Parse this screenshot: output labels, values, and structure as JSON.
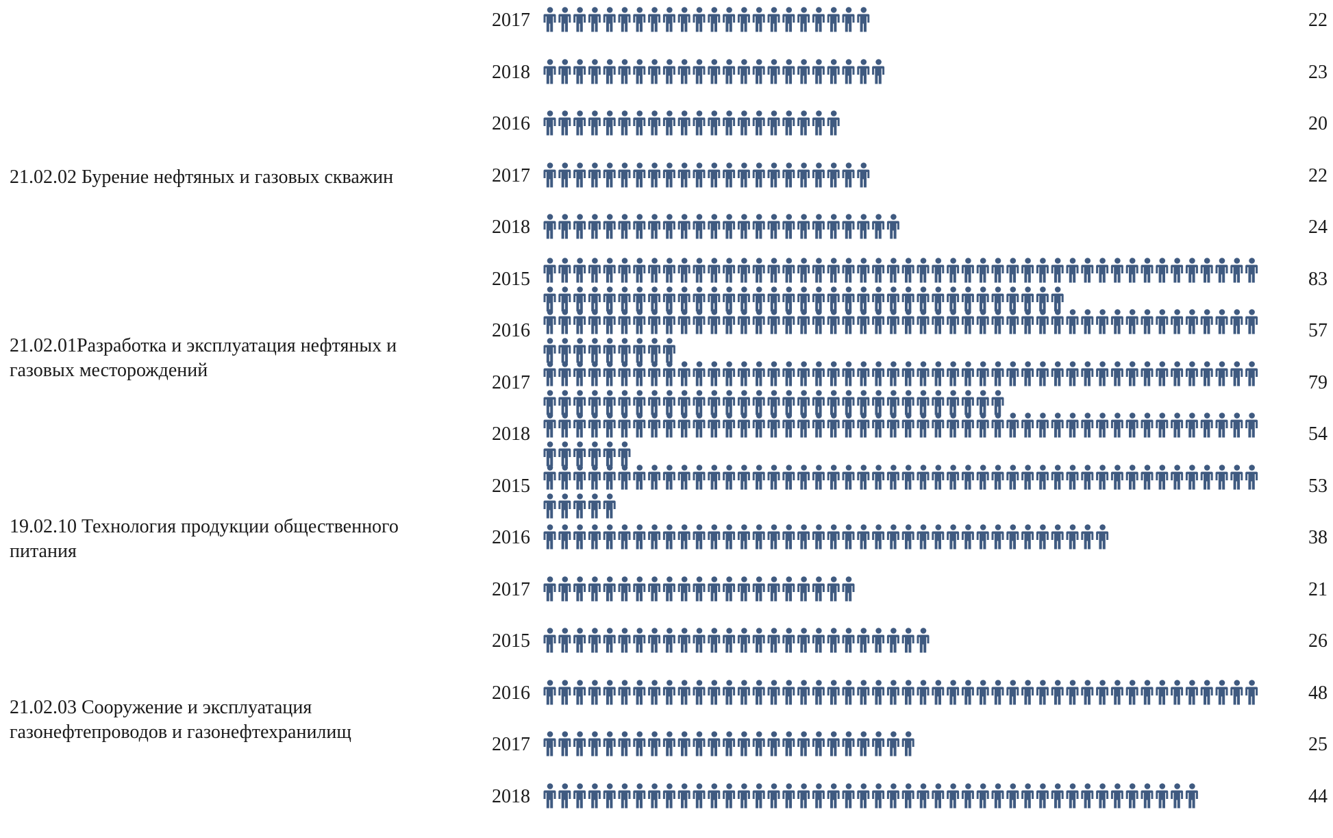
{
  "colors": {
    "icon": "#3f5a80",
    "text": "#1a1a1a"
  },
  "icon_name": "person-icon",
  "chart_data": {
    "type": "pictogram",
    "title": "",
    "groups": [
      {
        "name": "",
        "rows": [
          {
            "year": "2017",
            "value": 22
          },
          {
            "year": "2018",
            "value": 23
          }
        ]
      },
      {
        "name": "21.02.02 Бурение нефтяных и газовых скважин",
        "rows": [
          {
            "year": "2016",
            "value": 20
          },
          {
            "year": "2017",
            "value": 22
          },
          {
            "year": "2018",
            "value": 24
          }
        ]
      },
      {
        "name": "21.02.01Разработка и эксплуатация нефтяных и газовых месторождений",
        "rows": [
          {
            "year": "2015",
            "value": 83
          },
          {
            "year": "2016",
            "value": 57
          },
          {
            "year": "2017",
            "value": 79
          },
          {
            "year": "2018",
            "value": 54
          }
        ]
      },
      {
        "name": "19.02.10 Технология продукции общественного питания",
        "rows": [
          {
            "year": "2015",
            "value": 53
          },
          {
            "year": "2016",
            "value": 38
          },
          {
            "year": "2017",
            "value": 21
          }
        ]
      },
      {
        "name": "21.02.03 Сооружение и эксплуатация газонефтепроводов и газонефтехранилищ",
        "rows": [
          {
            "year": "2015",
            "value": 26
          },
          {
            "year": "2016",
            "value": 48
          },
          {
            "year": "2017",
            "value": 25
          },
          {
            "year": "2018",
            "value": 44
          }
        ]
      }
    ]
  }
}
